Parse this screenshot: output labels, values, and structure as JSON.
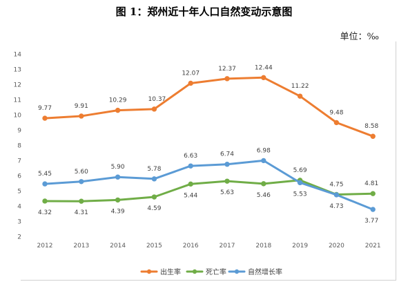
{
  "title": "图 1：郑州近十年人口自然变动示意图",
  "unit": "单位：‰",
  "chart_data": {
    "type": "line",
    "categories": [
      "2012",
      "2013",
      "2014",
      "2015",
      "2016",
      "2017",
      "2018",
      "2019",
      "2020",
      "2021"
    ],
    "ylim": [
      2,
      14
    ],
    "yticks": [
      "2",
      "3",
      "4",
      "5",
      "6",
      "7",
      "8",
      "9",
      "10",
      "11",
      "12",
      "13",
      "14"
    ],
    "grid": false,
    "legend_position": "bottom",
    "series": [
      {
        "name": "出生率",
        "color": "#ed7d31",
        "values": [
          9.77,
          9.91,
          10.29,
          10.37,
          12.07,
          12.37,
          12.44,
          11.22,
          9.48,
          8.58
        ],
        "labels": [
          "9.77",
          "9.91",
          "10.29",
          "10.37",
          "12.07",
          "12.37",
          "12.44",
          "11.22",
          "9.48",
          "8.58"
        ]
      },
      {
        "name": "死亡率",
        "color": "#70ad47",
        "values": [
          4.32,
          4.31,
          4.39,
          4.59,
          5.44,
          5.63,
          5.46,
          5.69,
          4.75,
          4.81
        ],
        "labels": [
          "4.32",
          "4.31",
          "4.39",
          "4.59",
          "5.44",
          "5.63",
          "5.46",
          "5.69",
          "4.75",
          "4.81"
        ]
      },
      {
        "name": "自然增长率",
        "color": "#5b9bd5",
        "values": [
          5.45,
          5.6,
          5.9,
          5.78,
          6.63,
          6.74,
          6.98,
          5.53,
          4.73,
          3.77
        ],
        "labels": [
          "5.45",
          "5.60",
          "5.90",
          "5.78",
          "6.63",
          "6.74",
          "6.98",
          "5.53",
          "4.73",
          "3.77"
        ]
      }
    ]
  }
}
